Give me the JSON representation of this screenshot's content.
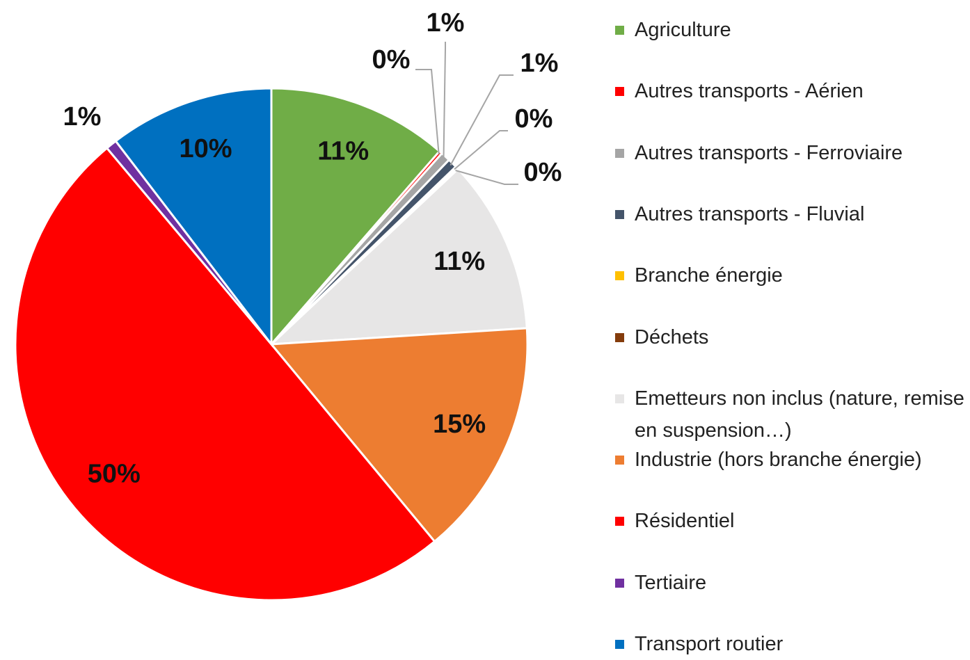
{
  "chart_data": {
    "type": "pie",
    "categories": [
      "Agriculture",
      "Autres transports - Aérien",
      "Autres transports - Ferroviaire",
      "Autres transports - Fluvial",
      "Branche énergie",
      "Déchets",
      "Emetteurs non inclus (nature, remise en suspension…)",
      "Industrie (hors branche énergie)",
      "Résidentiel",
      "Tertiaire",
      "Transport routier"
    ],
    "values": [
      11.4,
      0.2,
      0.6,
      0.6,
      0.1,
      0.1,
      11.0,
      15.0,
      49.9,
      0.7,
      10.4
    ],
    "value_labels": [
      "11%",
      "0%",
      "1%",
      "1%",
      "0%",
      "0%",
      "11%",
      "15%",
      "50%",
      "1%",
      "10%"
    ],
    "colors": [
      "#70ad47",
      "#ff0000",
      "#a5a5a5",
      "#44546a",
      "#ffc000",
      "#843c0c",
      "#e7e6e6",
      "#ed7d31",
      "#ff0000",
      "#7030a0",
      "#0070c0"
    ],
    "legend": "right"
  }
}
